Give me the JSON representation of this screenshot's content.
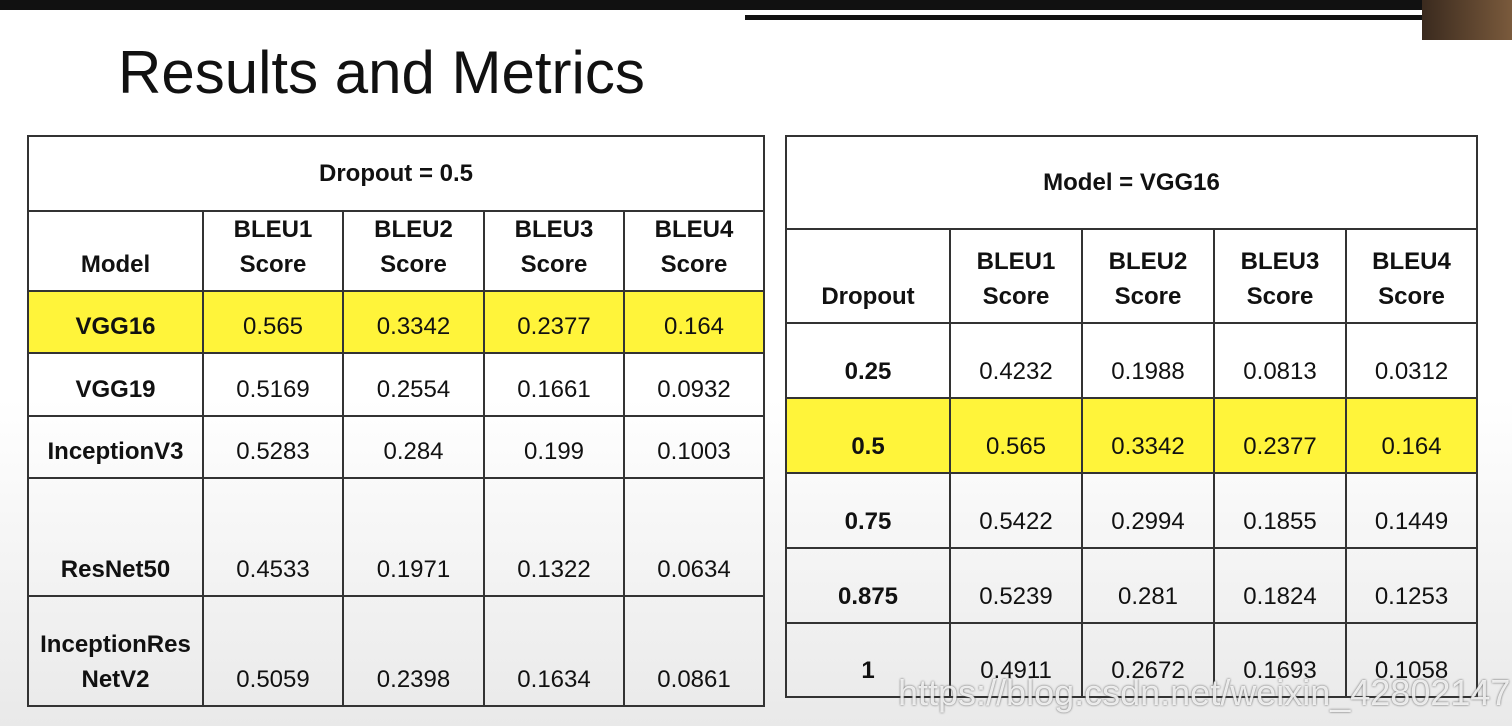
{
  "title": "Results and Metrics",
  "tables": [
    {
      "caption": "Dropout = 0.5",
      "header": [
        "Model",
        "BLEU1 Score",
        "BLEU2 Score",
        "BLEU3 Score",
        "BLEU4 Score"
      ],
      "rows": [
        [
          "VGG16",
          "0.565",
          "0.3342",
          "0.2377",
          "0.164"
        ],
        [
          "VGG19",
          "0.5169",
          "0.2554",
          "0.1661",
          "0.0932"
        ],
        [
          "InceptionV3",
          "0.5283",
          "0.284",
          "0.199",
          "0.1003"
        ],
        [
          "ResNet50",
          "0.4533",
          "0.1971",
          "0.1322",
          "0.0634"
        ],
        [
          "InceptionRes NetV2",
          "0.5059",
          "0.2398",
          "0.1634",
          "0.0861"
        ]
      ]
    },
    {
      "caption": "Model = VGG16",
      "header": [
        "Dropout",
        "BLEU1 Score",
        "BLEU2 Score",
        "BLEU3 Score",
        "BLEU4 Score"
      ],
      "rows": [
        [
          "0.25",
          "0.4232",
          "0.1988",
          "0.0813",
          "0.0312"
        ],
        [
          "0.5",
          "0.565",
          "0.3342",
          "0.2377",
          "0.164"
        ],
        [
          "0.75",
          "0.5422",
          "0.2994",
          "0.1855",
          "0.1449"
        ],
        [
          "0.875",
          "0.5239",
          "0.281",
          "0.1824",
          "0.1253"
        ],
        [
          "1",
          "0.4911",
          "0.2672",
          "0.1693",
          "0.1058"
        ]
      ]
    }
  ],
  "watermark": "https://blog.csdn.net/weixin_42802147"
}
